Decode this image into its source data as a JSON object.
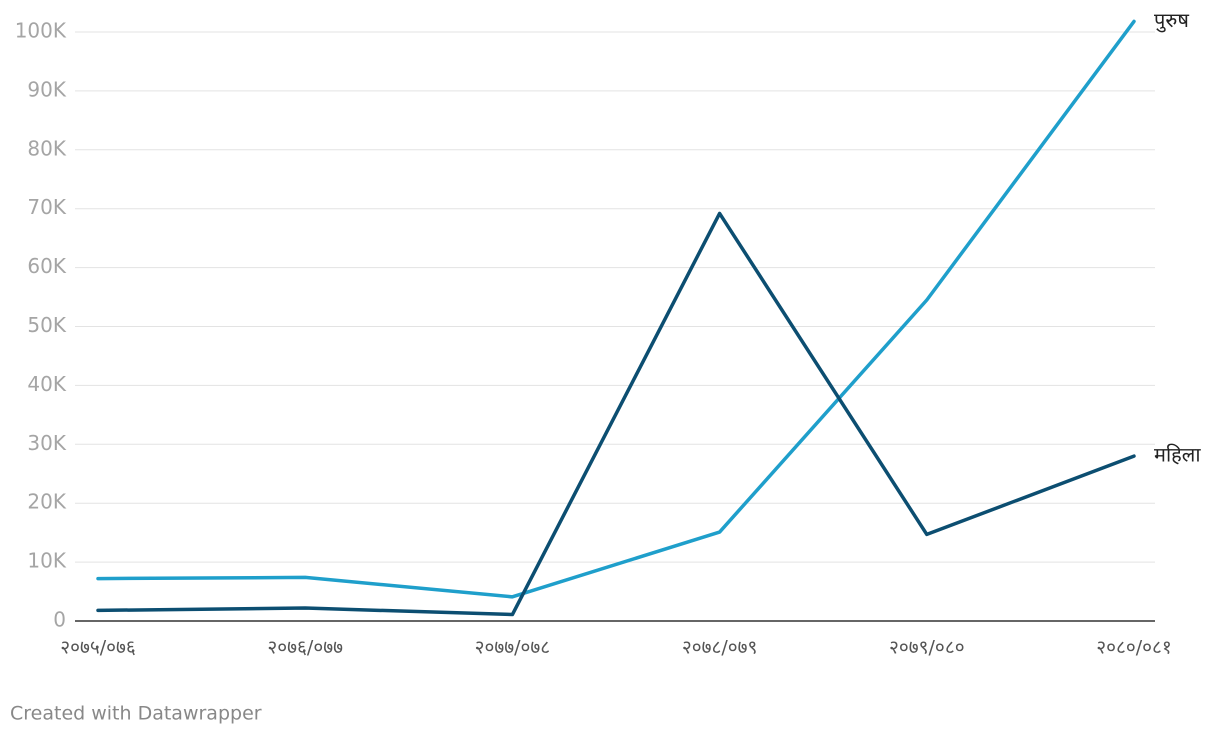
{
  "chart_data": {
    "type": "line",
    "categories": [
      "२०७५/०७६",
      "२०७६/०७७",
      "२०७७/०७८",
      "२०७८/०७९",
      "२०७९/०८०",
      "२०८०/०८१"
    ],
    "series": [
      {
        "name": "पुरुष",
        "color": "#1f9fcb",
        "values": [
          7200,
          7400,
          4100,
          15100,
          54500,
          101800
        ]
      },
      {
        "name": "महिला",
        "color": "#0c4e71",
        "values": [
          1800,
          2200,
          1100,
          69200,
          14700,
          28000
        ]
      }
    ],
    "ylim": [
      0,
      100000
    ],
    "yticks": [
      0,
      {
        "value": 10000,
        "label": "10K"
      },
      {
        "value": 20000,
        "label": "20K"
      },
      {
        "value": 30000,
        "label": "30K"
      },
      {
        "value": 40000,
        "label": "40K"
      },
      {
        "value": 50000,
        "label": "50K"
      },
      {
        "value": 60000,
        "label": "60K"
      },
      {
        "value": 70000,
        "label": "70K"
      },
      {
        "value": 80000,
        "label": "80K"
      },
      {
        "value": 90000,
        "label": "90K"
      },
      {
        "value": 100000,
        "label": "100K"
      }
    ],
    "grid": true,
    "note": "Created with Datawrapper"
  }
}
